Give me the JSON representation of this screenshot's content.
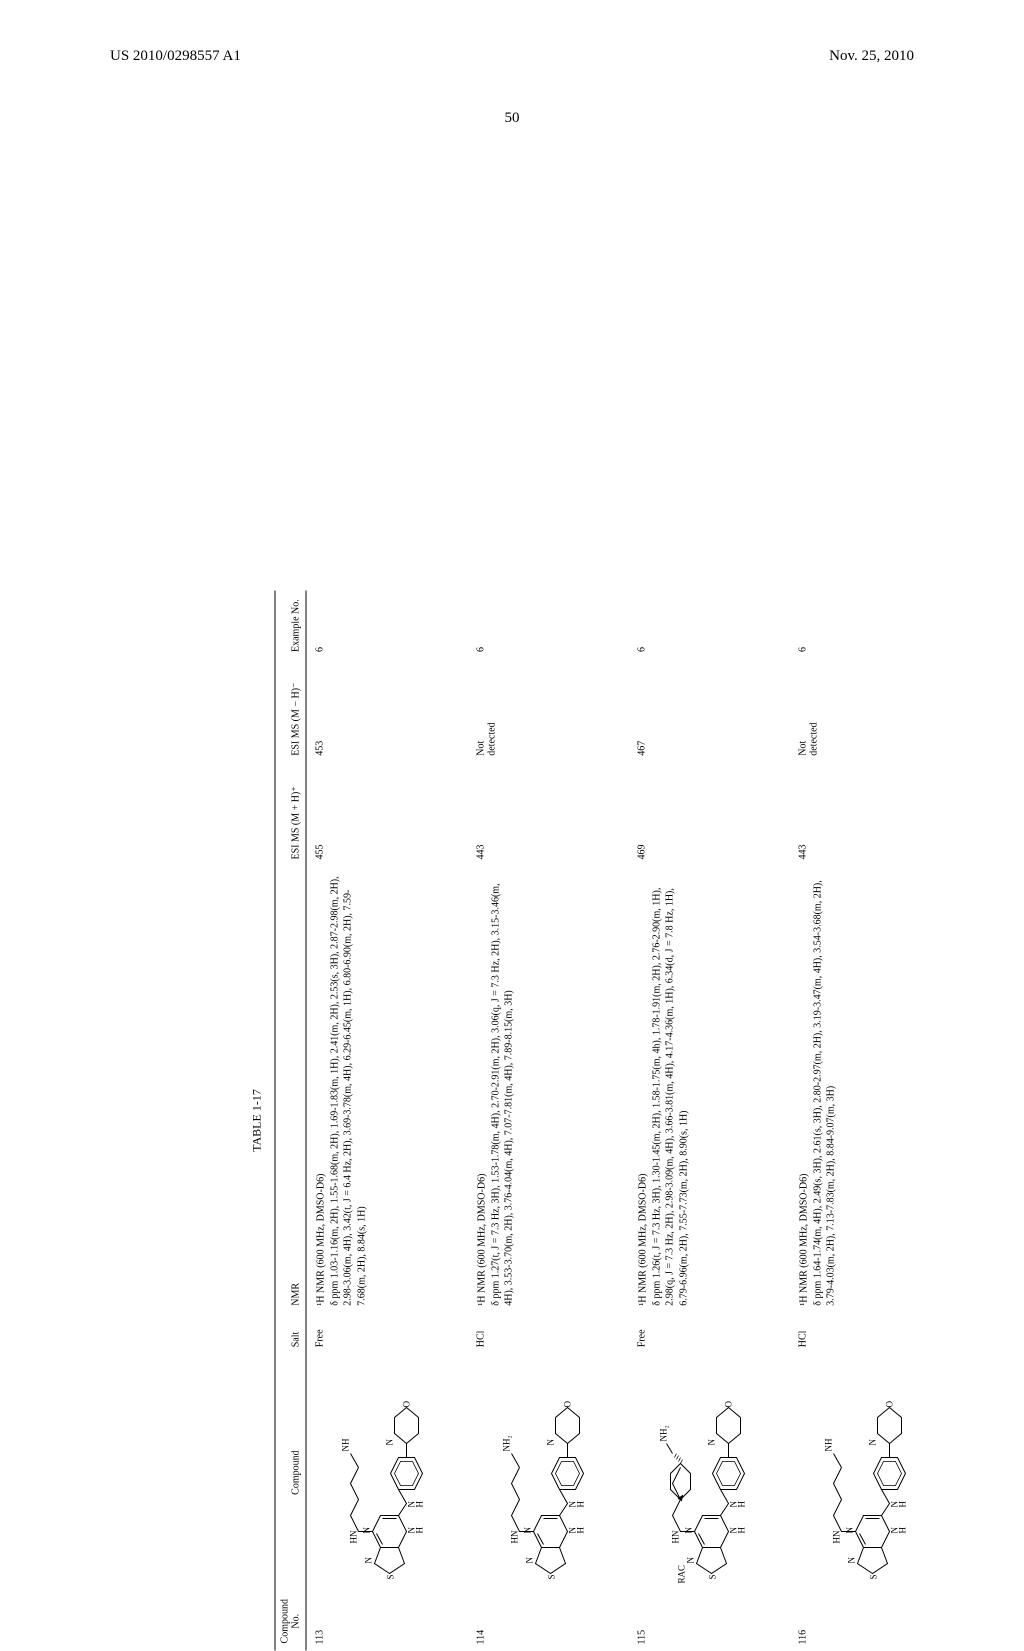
{
  "header": {
    "pub_number": "US 2010/0298557 A1",
    "pub_date": "Nov. 25, 2010",
    "page": "50"
  },
  "table": {
    "title": "TABLE 1-17",
    "columns": {
      "compound_no": "Compound\nNo.",
      "compound": "Compound",
      "salt": "Salt",
      "nmr": "NMR",
      "ms_pos": "ESI MS (M + H)⁺",
      "ms_neg": "ESI MS (M − H)⁻",
      "example_no": "Example No."
    },
    "rows": [
      {
        "no": "113",
        "prefix": "",
        "salt": "Free",
        "nmr": "¹H NMR (600 MHz, DMSO-D6)\nδ ppm 1.03-1.16(m, 2H), 1.55-1.68(m, 2H), 1.69-1.83(m, 1H), 2.41(m, 2H), 2.53(s, 3H), 2.87-2.98(m, 2H), 2.98-3.06(m, 4H), 3.42(t, J = 6.4 Hz, 2H), 3.69-3.78(m, 4H), 6.29-6.45(m, 1H), 6.80-6.90(m, 2H), 7.59-7.68(m, 2H), 8.84(s, 1H)",
        "ms_pos": "455",
        "ms_neg": "453",
        "ex": "6",
        "amine": "NH"
      },
      {
        "no": "114",
        "prefix": "",
        "salt": "HCl",
        "nmr": "¹H NMR (600 MHz, DMSO-D6)\nδ ppm 1.27(t, J = 7.3 Hz, 3H), 1.53-1.78(m, 4H), 2.70-2.91(m, 2H), 3.06(q, J = 7.3 Hz, 2H), 3.15-3.46(m, 4H), 3.53-3.70(m, 2H), 3.76-4.04(m, 4H), 7.07-7.81(m, 4H), 7.89-8.15(m, 3H)",
        "ms_pos": "443",
        "ms_neg": "Not\ndetected",
        "ex": "6",
        "amine": "NH₂"
      },
      {
        "no": "115",
        "prefix": "RAC",
        "salt": "Free",
        "nmr": "¹H NMR (600 MHz, DMSO-D6)\nδ ppm 1.26(t, J = 7.3 Hz, 3H), 1.30-1.45(m, 2H), 1.58-1.75(m, 4h), 1.78-1.91(m, 2H), 2.76-2.90(m, 1H), 2.98(q, J = 7.3 Hz, 2H), 2.98-3.09(m, 4H), 3.66-3.81(m, 4H), 4.17-4.36(m, 1H), 6.34(d, J = 7.8 Hz, 1H), 6.79-6.96(m, 2H), 7.55-7.73(m, 2H), 8.90(s, 1H)",
        "ms_pos": "469",
        "ms_neg": "467",
        "ex": "6",
        "amine": "NH₂"
      },
      {
        "no": "116",
        "prefix": "",
        "salt": "HCl",
        "nmr": "¹H NMR (600 MHz, DMSO-D6)\nδ ppm 1.64-1.74(m, 4H), 2.49(s, 3H), 2.61(s, 3H), 2.80-2.97(m, 2H), 3.19-3.47(m, 4H), 3.54-3.68(m, 2H), 3.79-4.03(m, 2H), 7.13-7.83(m, 2H), 8.84-9.07(m, 3H)",
        "ms_pos": "443",
        "ms_neg": "Not\ndetected",
        "ex": "6",
        "amine": "NH"
      }
    ]
  }
}
